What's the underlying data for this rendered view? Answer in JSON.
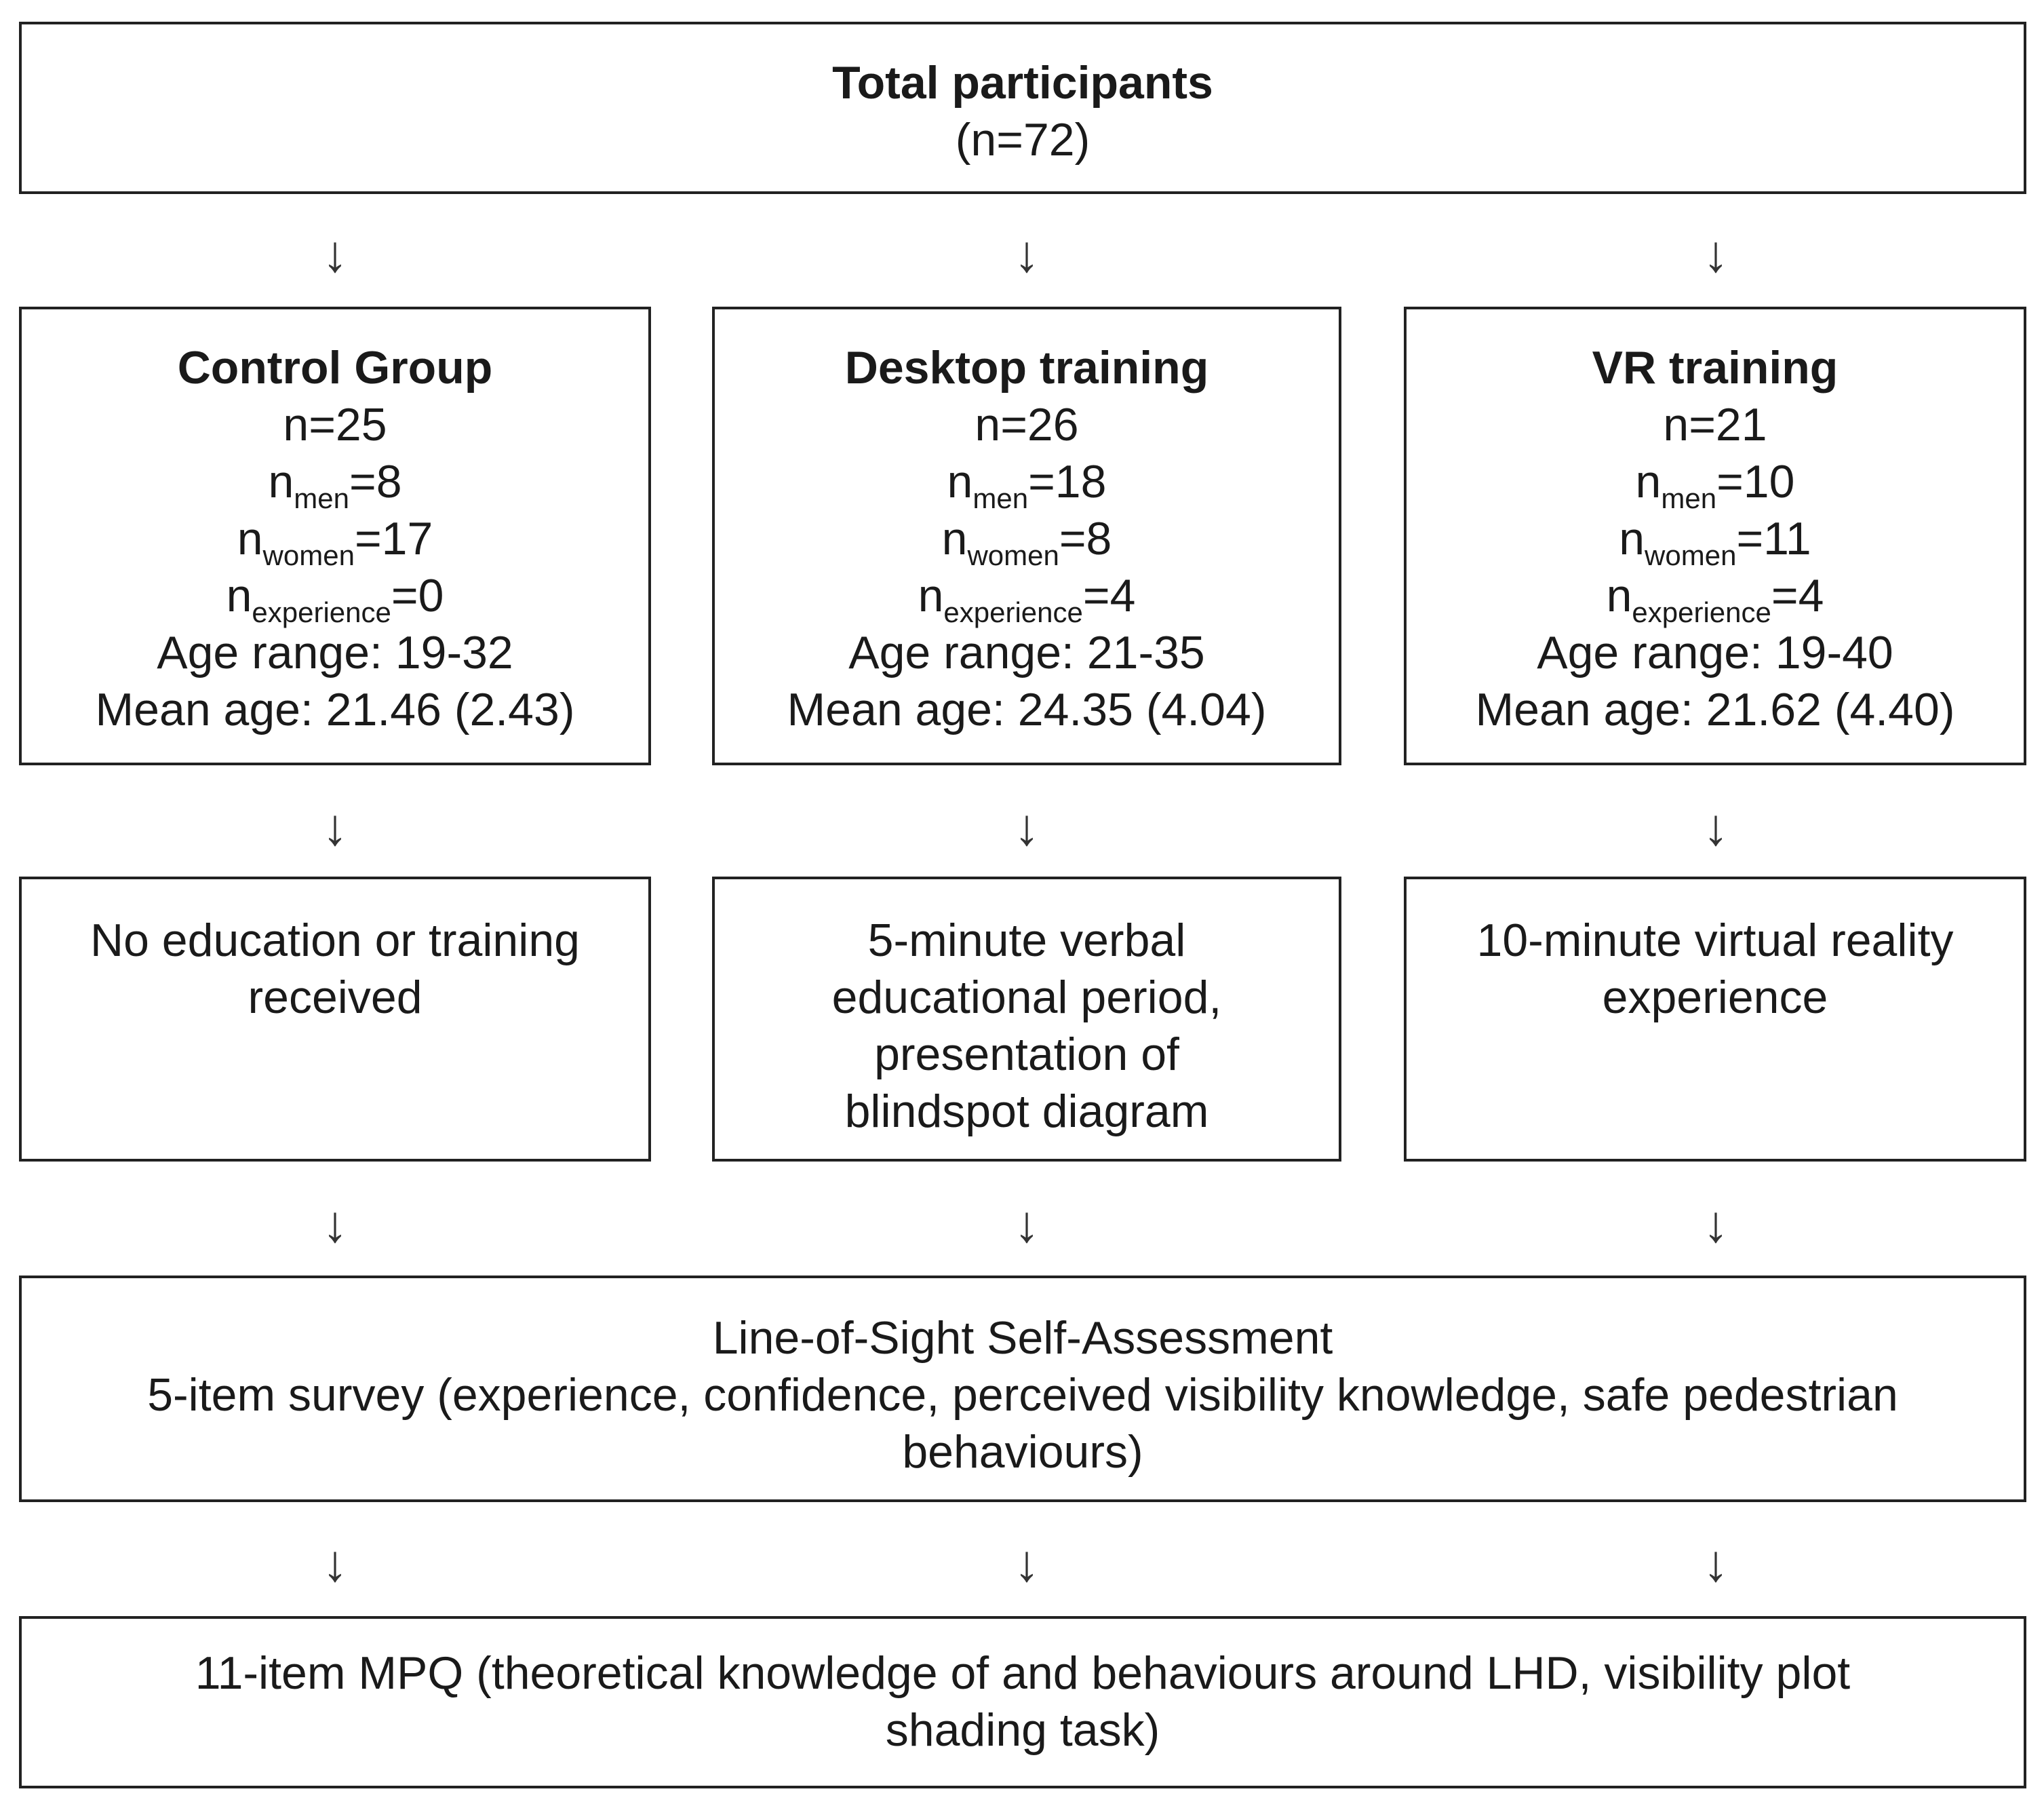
{
  "total": {
    "title": "Total participants",
    "n": "(n=72)"
  },
  "groups": [
    {
      "title": "Control Group",
      "n": "n=25",
      "n_men": "=8",
      "n_women": "=17",
      "n_experience": "=0",
      "age_range": "Age range: 19-32",
      "mean_age": "Mean age: 21.46 (2.43)",
      "task": [
        "No education or training",
        "received"
      ]
    },
    {
      "title": "Desktop training",
      "n": "n=26",
      "n_men": "=18",
      "n_women": "=8",
      "n_experience": "=4",
      "age_range": "Age range: 21-35",
      "mean_age": "Mean age: 24.35 (4.04)",
      "task": [
        "5-minute verbal",
        "educational period,",
        "presentation of",
        "blindspot diagram"
      ]
    },
    {
      "title": "VR training",
      "n": "n=21",
      "n_men": "=10",
      "n_women": "=11",
      "n_experience": "=4",
      "age_range": "Age range: 19-40",
      "mean_age": "Mean age: 21.62 (4.40)",
      "task": [
        "10-minute virtual reality",
        "experience"
      ]
    }
  ],
  "labels": {
    "n_letter": "n",
    "men_sub": "men",
    "women_sub": "women",
    "experience_sub": "experience"
  },
  "survey": {
    "title": "Line-of-Sight Self-Assessment",
    "lines": [
      "5-item survey (experience, confidence, perceived visibility knowledge, safe pedestrian",
      "behaviours)"
    ]
  },
  "mpq": {
    "lines": [
      "11-item MPQ (theoretical knowledge of and behaviours around LHD, visibility plot",
      "shading task)"
    ]
  },
  "arrow_glyph": "↓",
  "colors": {
    "border": "#222222",
    "text": "#1a1a1a",
    "background": "#ffffff"
  }
}
